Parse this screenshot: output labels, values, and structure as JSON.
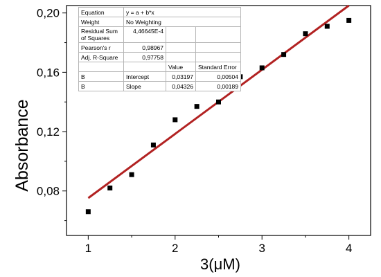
{
  "chart_data": {
    "type": "scatter",
    "xlabel": "3(μM)",
    "ylabel": "Absorbance",
    "xlim": [
      0.75,
      4.25
    ],
    "ylim": [
      0.05,
      0.205
    ],
    "x_ticks": [
      1,
      2,
      3,
      4
    ],
    "x_tick_labels": [
      "1",
      "2",
      "3",
      "4"
    ],
    "y_ticks": [
      0.08,
      0.12,
      0.16,
      0.2
    ],
    "y_tick_labels": [
      "0,08",
      "0,12",
      "0,16",
      "0,20"
    ],
    "grid": false,
    "series": [
      {
        "type": "scatter",
        "color": "#000000",
        "x": [
          1.0,
          1.25,
          1.5,
          1.75,
          2.0,
          2.25,
          2.5,
          2.75,
          3.0,
          3.25,
          3.5,
          3.75,
          4.0
        ],
        "y": [
          0.066,
          0.082,
          0.091,
          0.111,
          0.128,
          0.137,
          0.14,
          0.157,
          0.163,
          0.172,
          0.186,
          0.191,
          0.195
        ]
      },
      {
        "type": "line",
        "color": "#b22222",
        "x": [
          1.0,
          4.0
        ],
        "y": [
          0.0752,
          0.205
        ]
      }
    ]
  },
  "fit_table": {
    "rows": [
      [
        "Equation",
        "y = a + b*x",
        "",
        ""
      ],
      [
        "Weight",
        "No Weighting",
        "",
        ""
      ],
      [
        "Residual Sum of Squares",
        "4,46645E-4",
        "",
        ""
      ],
      [
        "Pearson's r",
        "0,98967",
        "",
        ""
      ],
      [
        "Adj. R-Square",
        "0,97758",
        "",
        ""
      ],
      [
        "",
        "",
        "Value",
        "Standard Error"
      ],
      [
        "B",
        "Intercept",
        "0,03197",
        "0,00504"
      ],
      [
        "B",
        "Slope",
        "0,04326",
        "0,00189"
      ]
    ]
  }
}
